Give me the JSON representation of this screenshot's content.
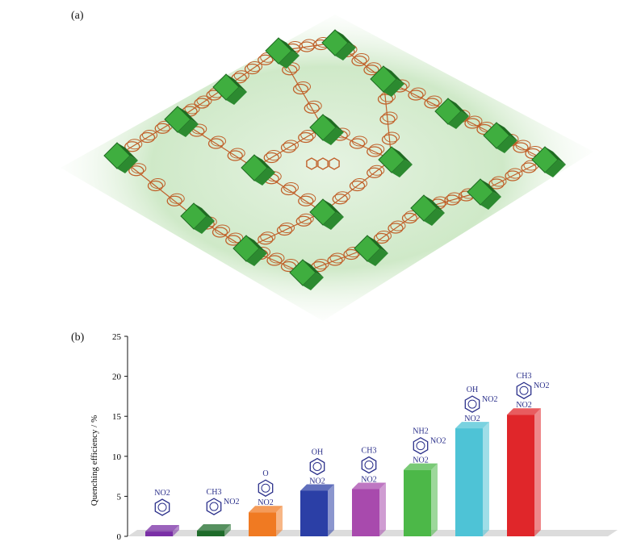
{
  "panels": {
    "a_label": "(a)",
    "b_label": "(b)"
  },
  "structure_image": {
    "icon": "mof-framework-illustration",
    "colors": {
      "polyhedra": "#3fae3f",
      "polyhedra_dark": "#1f6b22",
      "linker": "#c0602a",
      "halo": "#cfe9c8"
    }
  },
  "chart_data": {
    "type": "bar",
    "title": "",
    "xlabel": "",
    "ylabel": "Quenching efficiency / %",
    "ylim": [
      0,
      25
    ],
    "yticks": [
      0,
      5,
      10,
      15,
      20,
      25
    ],
    "categories": [
      "nitrobenzene",
      "2-nitrotoluene",
      "4-nitroacetophenone",
      "4-nitrophenol",
      "4-nitrotoluene",
      "2,4-dinitroaniline",
      "2,4-dinitrophenol",
      "2,4-dinitrotoluene"
    ],
    "values": [
      0.6,
      0.7,
      3.0,
      5.7,
      5.9,
      8.3,
      13.5,
      15.2
    ],
    "colors": [
      "#7a2fa6",
      "#1e6b2a",
      "#f07a22",
      "#2b3fa6",
      "#a84aad",
      "#4cb848",
      "#4ec3d6",
      "#e0262a"
    ],
    "molecule_labels": [
      [
        "NO2"
      ],
      [
        "CH3",
        "NO2"
      ],
      [
        "O",
        "NO2"
      ],
      [
        "OH",
        "NO2"
      ],
      [
        "CH3",
        "NO2"
      ],
      [
        "NH2",
        "NO2",
        "NO2"
      ],
      [
        "OH",
        "NO2",
        "NO2"
      ],
      [
        "CH3",
        "NO2",
        "NO2"
      ]
    ]
  }
}
